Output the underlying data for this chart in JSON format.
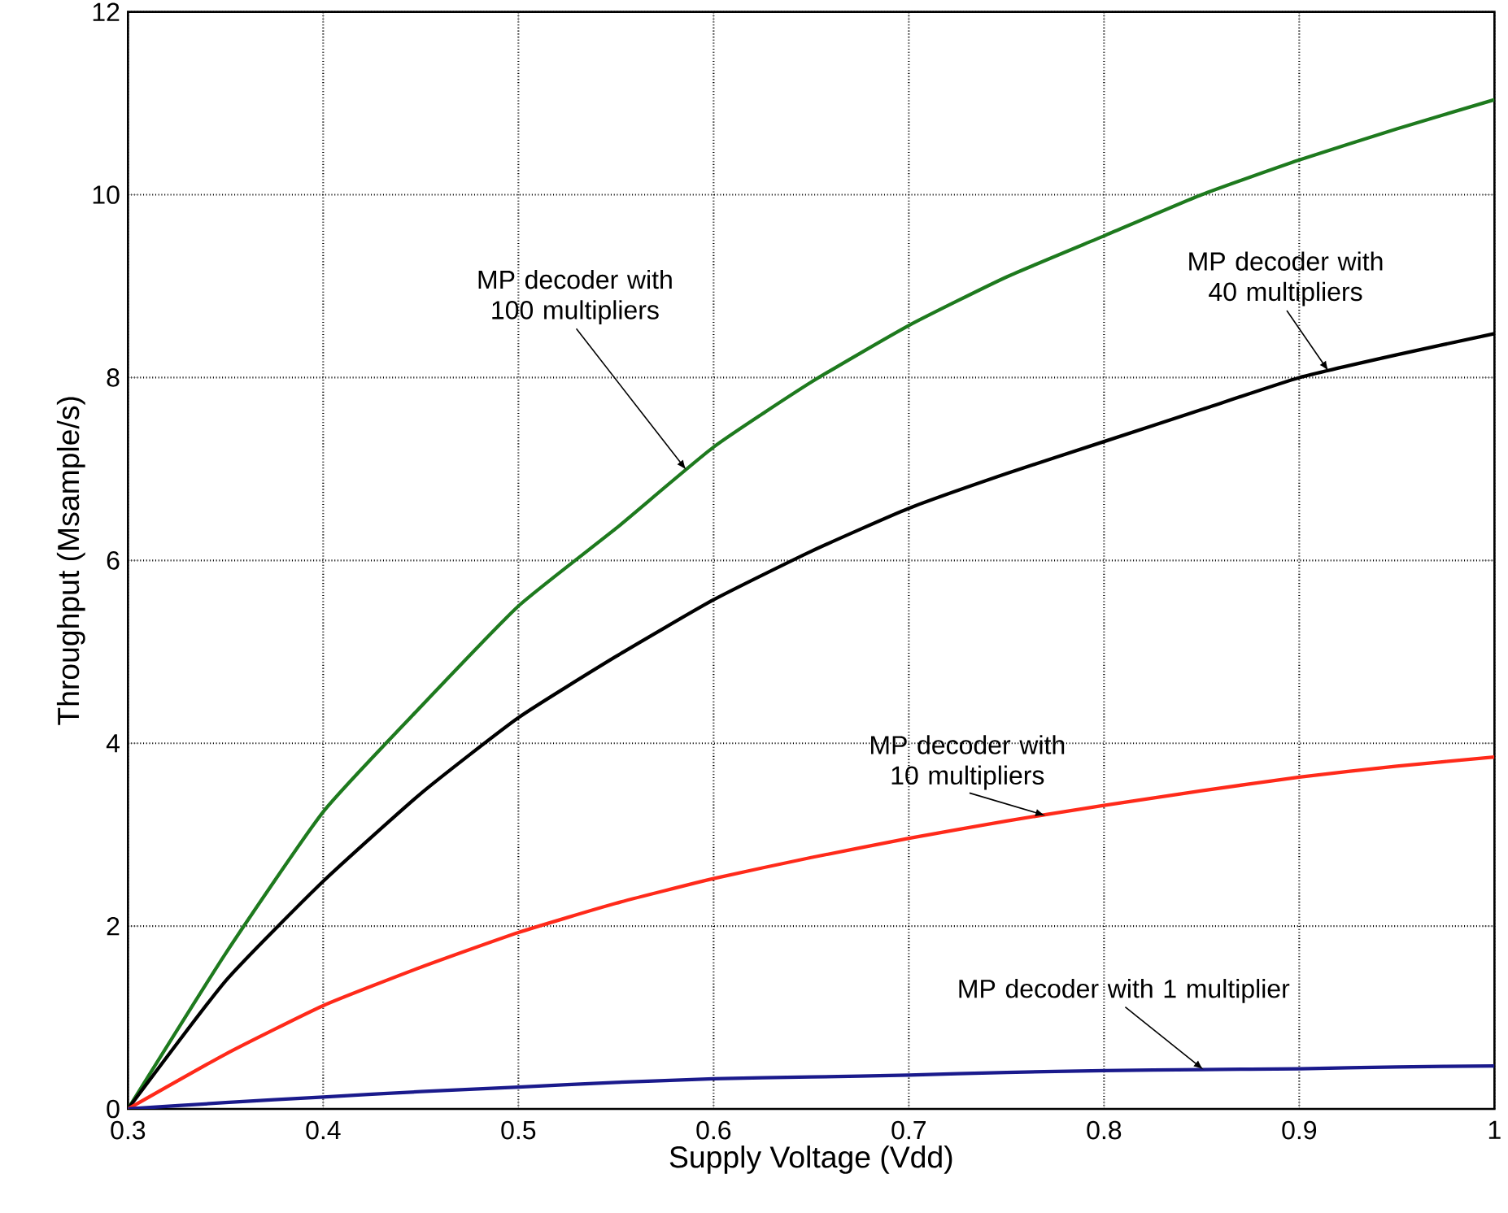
{
  "chart_data": {
    "type": "line",
    "xlabel": "Supply Voltage (Vdd)",
    "ylabel": "Throughput (Msample/s)",
    "x": [
      0.3,
      0.35,
      0.4,
      0.45,
      0.5,
      0.55,
      0.6,
      0.65,
      0.7,
      0.75,
      0.8,
      0.85,
      0.9,
      0.95,
      1.0
    ],
    "series": [
      {
        "color": "#1e7a1e",
        "values": [
          0,
          1.7,
          3.25,
          4.4,
          5.5,
          6.35,
          7.24,
          7.95,
          8.57,
          9.1,
          9.55,
          10.0,
          10.38,
          10.72,
          11.04
        ]
      },
      {
        "color": "#000000",
        "values": [
          0,
          1.4,
          2.49,
          3.45,
          4.28,
          4.95,
          5.57,
          6.1,
          6.57,
          6.95,
          7.3,
          7.65,
          8.0,
          8.25,
          8.48
        ]
      },
      {
        "color": "#ff2a1a",
        "values": [
          0,
          0.6,
          1.13,
          1.55,
          1.93,
          2.25,
          2.52,
          2.75,
          2.96,
          3.15,
          3.32,
          3.48,
          3.63,
          3.75,
          3.85
        ]
      },
      {
        "color": "#1a1a8c",
        "values": [
          0,
          0.07,
          0.13,
          0.19,
          0.24,
          0.29,
          0.33,
          0.35,
          0.37,
          0.4,
          0.42,
          0.43,
          0.44,
          0.46,
          0.47
        ]
      }
    ],
    "xlim": [
      0.3,
      1
    ],
    "ylim": [
      0,
      12
    ],
    "xticks": [
      0.3,
      0.4,
      0.5,
      0.6,
      0.7,
      0.8,
      0.9,
      1
    ],
    "yticks": [
      0,
      2,
      4,
      6,
      8,
      10,
      12
    ],
    "grid": true,
    "marker": "none",
    "line_style": "solid",
    "annotations": [
      {
        "text": "MP decoder with 100 multipliers",
        "x": 0.586,
        "y": 6.99
      },
      {
        "text": "MP decoder with 40 multipliers",
        "x": 0.915,
        "y": 8.07
      },
      {
        "text": "MP decoder with 10 multipliers",
        "x": 0.77,
        "y": 3.21
      },
      {
        "text": "MP decoder with 1 multiplier",
        "x": 0.851,
        "y": 0.43
      }
    ]
  }
}
